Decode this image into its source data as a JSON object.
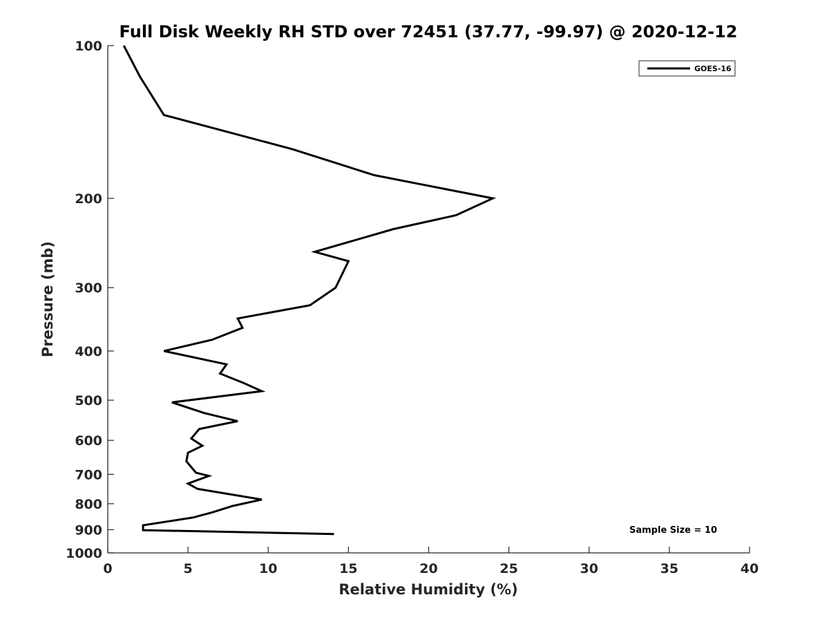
{
  "chart_data": {
    "type": "line",
    "title": "Full Disk Weekly RH STD over 72451 (37.77, -99.97) @ 2020-12-12",
    "xlabel": "Relative Humidity (%)",
    "ylabel": "Pressure (mb)",
    "xlim": [
      0,
      40
    ],
    "ylim": [
      100,
      1000
    ],
    "y_scale": "log",
    "y_reversed": true,
    "grid": false,
    "legend_position": "top-right",
    "x_ticks": [
      "0",
      "5",
      "10",
      "15",
      "20",
      "25",
      "30",
      "35",
      "40"
    ],
    "y_ticks": [
      "100",
      "200",
      "300",
      "400",
      "500",
      "600",
      "700",
      "800",
      "900",
      "1000"
    ],
    "annotation": "Sample Size = 10",
    "series": [
      {
        "name": "GOES-16",
        "color": "#000000",
        "x": [
          1.0,
          2.0,
          3.5,
          11.5,
          16.6,
          24.0,
          21.7,
          17.8,
          12.9,
          15.0,
          14.2,
          12.6,
          8.1,
          8.4,
          6.5,
          3.5,
          7.4,
          7.0,
          8.5,
          9.6,
          4.0,
          6.0,
          8.1,
          5.7,
          5.2,
          5.9,
          5.0,
          4.9,
          5.5,
          6.3,
          5.0,
          5.6,
          9.6,
          7.8,
          6.5,
          5.3,
          2.2,
          2.2,
          14.1
        ],
        "y": [
          100,
          115,
          137,
          160,
          180,
          200,
          216,
          230,
          255,
          266,
          300,
          325,
          345,
          360,
          380,
          400,
          425,
          443,
          463,
          480,
          505,
          530,
          550,
          570,
          595,
          615,
          635,
          660,
          695,
          705,
          730,
          748,
          785,
          808,
          832,
          852,
          882,
          902,
          918
        ]
      }
    ]
  }
}
